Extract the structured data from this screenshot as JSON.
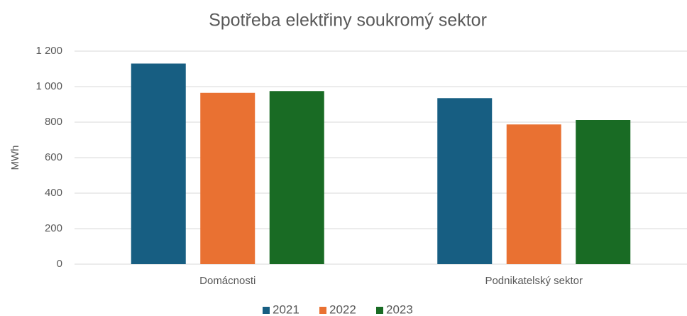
{
  "chart_data": {
    "type": "bar",
    "title": "Spotřeba elektřiny soukromý sektor",
    "y_label": "MWh",
    "categories": [
      "Domácnosti",
      "Podnikatelský sektor"
    ],
    "series": [
      {
        "name": "2021",
        "color": "#175e82",
        "values": [
          1130,
          935
        ]
      },
      {
        "name": "2022",
        "color": "#e97132",
        "values": [
          965,
          787
        ]
      },
      {
        "name": "2023",
        "color": "#196b24",
        "values": [
          975,
          812
        ]
      }
    ],
    "ylim": [
      0,
      1200
    ],
    "yticks": [
      0,
      200,
      400,
      600,
      800,
      {
        "value": 1000,
        "label": "1 000"
      },
      {
        "value": 1200,
        "label": "1 200"
      }
    ],
    "grid": true,
    "legend": "bottom"
  }
}
